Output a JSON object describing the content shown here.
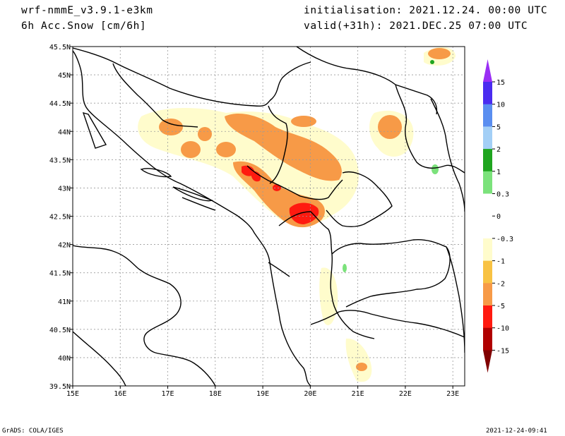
{
  "header": {
    "model": "wrf-nmmE_v3.9.1-e3km",
    "field": "6h Acc.Snow [cm/6h]",
    "init": "initialisation: 2021.12.24.  00:00 UTC",
    "valid": "valid(+31h): 2021.DEC.25 07:00 UTC"
  },
  "footer": {
    "left": "GrADS: COLA/IGES",
    "right": "2021-12-24-09:41"
  },
  "map": {
    "lon_ticks": [
      "15E",
      "16E",
      "17E",
      "18E",
      "19E",
      "20E",
      "21E",
      "22E",
      "23E"
    ],
    "lat_ticks": [
      "45.5N",
      "45N",
      "44.5N",
      "44N",
      "43.5N",
      "43N",
      "42.5N",
      "42N",
      "41.5N",
      "41N",
      "40.5N",
      "40N",
      "39.5N"
    ],
    "lon_range": [
      15,
      23.25
    ],
    "lat_range": [
      39.5,
      45.5
    ]
  },
  "colorbar": {
    "labels": [
      "15",
      "10",
      "5",
      "2",
      "1",
      "0.3",
      "0",
      "-0.3",
      "-1",
      "-2",
      "-5",
      "-10",
      "-15"
    ],
    "colors": [
      "#4a2cf0",
      "#5a8ef0",
      "#a3cff6",
      "#1fa51f",
      "#7be27b",
      "#ffffff",
      "#ffffff",
      "#fffccc",
      "#f8c243",
      "#f79a47",
      "#ff1a10",
      "#b00000"
    ],
    "top_color": "#9a2ef5",
    "bottom_color": "#800000"
  }
}
